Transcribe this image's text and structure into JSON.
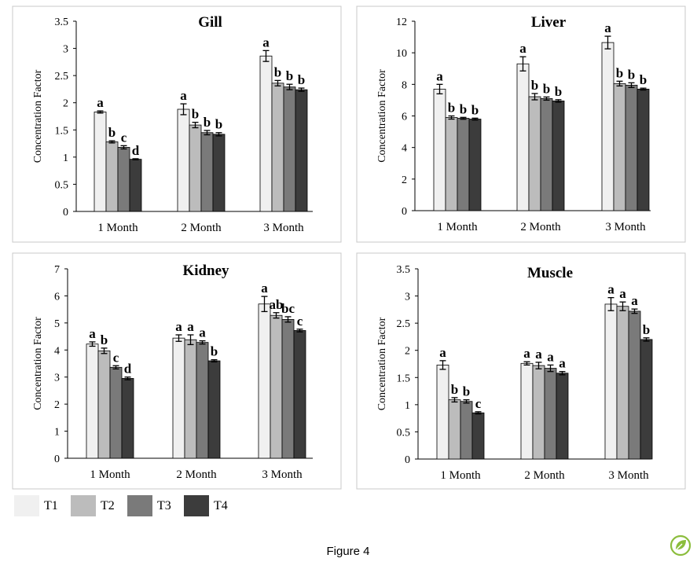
{
  "caption": "Figure 4",
  "legend": [
    {
      "name": "T1",
      "color": "#f0f0f0"
    },
    {
      "name": "T2",
      "color": "#bcbcbc"
    },
    {
      "name": "T3",
      "color": "#7a7a7a"
    },
    {
      "name": "T4",
      "color": "#3c3c3c"
    }
  ],
  "logo": "leaf-logo-icon",
  "chart_data": [
    {
      "type": "bar",
      "title": "Gill",
      "ylabel": "Concentration Factor",
      "xlabel": "",
      "ylim": [
        0,
        3.5
      ],
      "yticks": [
        "0",
        "0.5",
        "1",
        "1.5",
        "2",
        "2.5",
        "3",
        "3.5"
      ],
      "categories": [
        "1 Month",
        "2 Month",
        "3 Month"
      ],
      "grid": false,
      "series": [
        {
          "name": "T1",
          "values": [
            1.83,
            1.88,
            2.86
          ],
          "errors": [
            0.02,
            0.1,
            0.1
          ],
          "letters": [
            "a",
            "a",
            "a"
          ]
        },
        {
          "name": "T2",
          "values": [
            1.28,
            1.59,
            2.36
          ],
          "errors": [
            0.02,
            0.05,
            0.05
          ],
          "letters": [
            "b",
            "b",
            "b"
          ]
        },
        {
          "name": "T3",
          "values": [
            1.18,
            1.45,
            2.29
          ],
          "errors": [
            0.03,
            0.04,
            0.05
          ],
          "letters": [
            "c",
            "b",
            "b"
          ]
        },
        {
          "name": "T4",
          "values": [
            0.96,
            1.42,
            2.24
          ],
          "errors": [
            0.01,
            0.03,
            0.03
          ],
          "letters": [
            "d",
            "b",
            "b"
          ]
        }
      ]
    },
    {
      "type": "bar",
      "title": "Liver",
      "ylabel": "Concentration Factor",
      "xlabel": "",
      "ylim": [
        0,
        12
      ],
      "yticks": [
        "0",
        "2",
        "4",
        "6",
        "8",
        "10",
        "12"
      ],
      "categories": [
        "1 Month",
        "2 Month",
        "3 Month"
      ],
      "grid": false,
      "series": [
        {
          "name": "T1",
          "values": [
            7.7,
            9.3,
            10.65
          ],
          "errors": [
            0.3,
            0.45,
            0.4
          ],
          "letters": [
            "a",
            "a",
            "a"
          ]
        },
        {
          "name": "T2",
          "values": [
            5.9,
            7.22,
            8.05
          ],
          "errors": [
            0.1,
            0.2,
            0.15
          ],
          "letters": [
            "b",
            "b",
            "b"
          ]
        },
        {
          "name": "T3",
          "values": [
            5.85,
            7.1,
            7.95
          ],
          "errors": [
            0.06,
            0.1,
            0.15
          ],
          "letters": [
            "b",
            "b",
            "b"
          ]
        },
        {
          "name": "T4",
          "values": [
            5.8,
            6.95,
            7.7
          ],
          "errors": [
            0.06,
            0.08,
            0.06
          ],
          "letters": [
            "b",
            "b",
            "b"
          ]
        }
      ]
    },
    {
      "type": "bar",
      "title": "Kidney",
      "ylabel": "Concentration Factor",
      "xlabel": "",
      "ylim": [
        0,
        7
      ],
      "yticks": [
        "0",
        "1",
        "2",
        "3",
        "4",
        "5",
        "6",
        "7"
      ],
      "categories": [
        "1 Month",
        "2 Month",
        "3 Month"
      ],
      "grid": false,
      "series": [
        {
          "name": "T1",
          "values": [
            4.22,
            4.44,
            5.7
          ],
          "errors": [
            0.08,
            0.12,
            0.28
          ],
          "letters": [
            "a",
            "a",
            "a"
          ]
        },
        {
          "name": "T2",
          "values": [
            3.97,
            4.38,
            5.28
          ],
          "errors": [
            0.1,
            0.18,
            0.1
          ],
          "letters": [
            "b",
            "a",
            "ab"
          ]
        },
        {
          "name": "T3",
          "values": [
            3.36,
            4.28,
            5.13
          ],
          "errors": [
            0.06,
            0.06,
            0.1
          ],
          "letters": [
            "c",
            "a",
            "bc"
          ]
        },
        {
          "name": "T4",
          "values": [
            2.95,
            3.6,
            4.72
          ],
          "errors": [
            0.05,
            0.04,
            0.05
          ],
          "letters": [
            "d",
            "b",
            "c"
          ]
        }
      ]
    },
    {
      "type": "bar",
      "title": "Muscle",
      "ylabel": "Concentration Factor",
      "xlabel": "",
      "ylim": [
        0,
        3.5
      ],
      "yticks": [
        "0",
        "0.5",
        "1",
        "1.5",
        "2",
        "2.5",
        "3",
        "3.5"
      ],
      "categories": [
        "1 Month",
        "2 Month",
        "3 Month"
      ],
      "grid": false,
      "series": [
        {
          "name": "T1",
          "values": [
            1.73,
            1.76,
            2.85
          ],
          "errors": [
            0.08,
            0.03,
            0.12
          ],
          "letters": [
            "a",
            "a",
            "a"
          ]
        },
        {
          "name": "T2",
          "values": [
            1.09,
            1.72,
            2.81
          ],
          "errors": [
            0.04,
            0.06,
            0.08
          ],
          "letters": [
            "b",
            "a",
            "a"
          ]
        },
        {
          "name": "T3",
          "values": [
            1.06,
            1.67,
            2.72
          ],
          "errors": [
            0.03,
            0.06,
            0.04
          ],
          "letters": [
            "b",
            "a",
            "a"
          ]
        },
        {
          "name": "T4",
          "values": [
            0.85,
            1.58,
            2.2
          ],
          "errors": [
            0.02,
            0.03,
            0.03
          ],
          "letters": [
            "c",
            "a",
            "b"
          ]
        }
      ]
    }
  ]
}
